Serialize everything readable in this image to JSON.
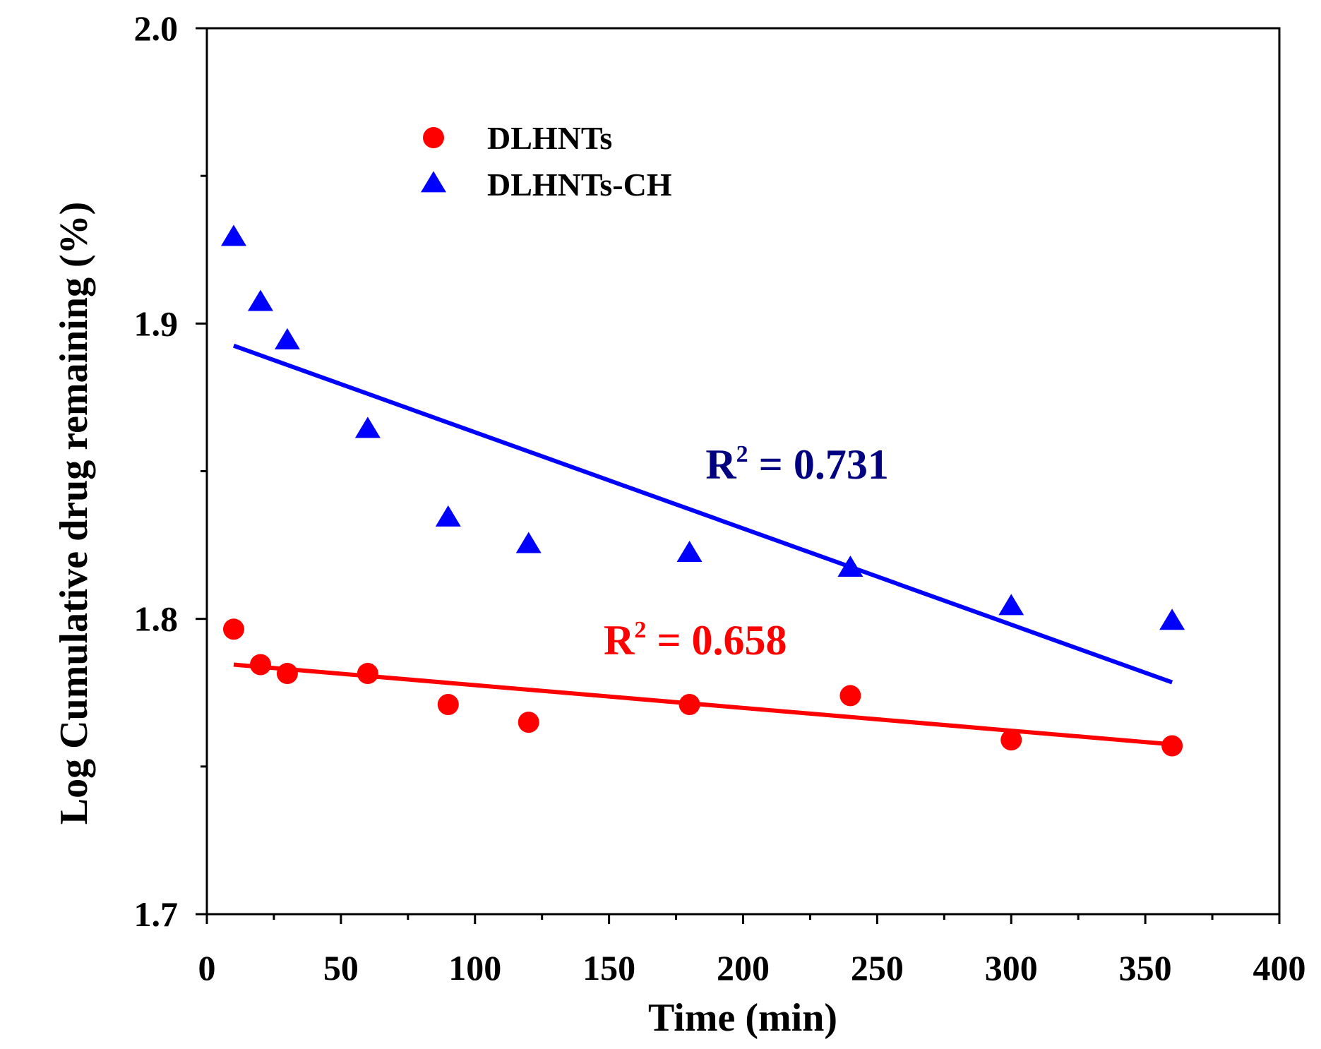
{
  "chart_data": {
    "type": "scatter",
    "title": "",
    "xlabel": "Time (min)",
    "ylabel": "Log Cumulative drug remaining (%)",
    "xlim": [
      0,
      400
    ],
    "ylim": [
      1.7,
      2.0
    ],
    "x_ticks": [
      0,
      50,
      100,
      150,
      200,
      250,
      300,
      350,
      400
    ],
    "x_tick_labels": [
      "0",
      "50",
      "100",
      "150",
      "200",
      "250",
      "300",
      "350",
      "400"
    ],
    "y_ticks": [
      1.7,
      1.8,
      1.9,
      2.0
    ],
    "y_tick_labels": [
      "1.7",
      "1.8",
      "1.9",
      "2.0"
    ],
    "grid": false,
    "legend_position": "top-left",
    "series": [
      {
        "name": "DLHNTs",
        "marker": "circle",
        "color": "#ff0000",
        "x": [
          10,
          20,
          30,
          60,
          90,
          120,
          180,
          240,
          300,
          360
        ],
        "y": [
          1.7965,
          1.7845,
          1.7815,
          1.7815,
          1.771,
          1.765,
          1.771,
          1.774,
          1.759,
          1.757
        ],
        "fit": {
          "x": [
            10,
            360
          ],
          "y": [
            1.7845,
            1.7575
          ],
          "color": "#ff0000"
        },
        "annotation": {
          "text": "R",
          "sup": "2",
          "rest": " = 0.658",
          "color": "#ff0000",
          "x": 148,
          "y": 1.788
        }
      },
      {
        "name": "DLHNTs-CH",
        "marker": "triangle",
        "color": "#0000ff",
        "x": [
          10,
          20,
          30,
          60,
          90,
          120,
          180,
          240,
          300,
          360
        ],
        "y": [
          1.929,
          1.907,
          1.894,
          1.864,
          1.834,
          1.825,
          1.822,
          1.817,
          1.804,
          1.799
        ],
        "fit": {
          "x": [
            10,
            360
          ],
          "y": [
            1.8925,
            1.7785
          ],
          "color": "#0000ff"
        },
        "annotation": {
          "text": "R",
          "sup": "2",
          "rest": " = 0.731",
          "color": "#000080",
          "x": 186,
          "y": 1.8475
        }
      }
    ]
  }
}
